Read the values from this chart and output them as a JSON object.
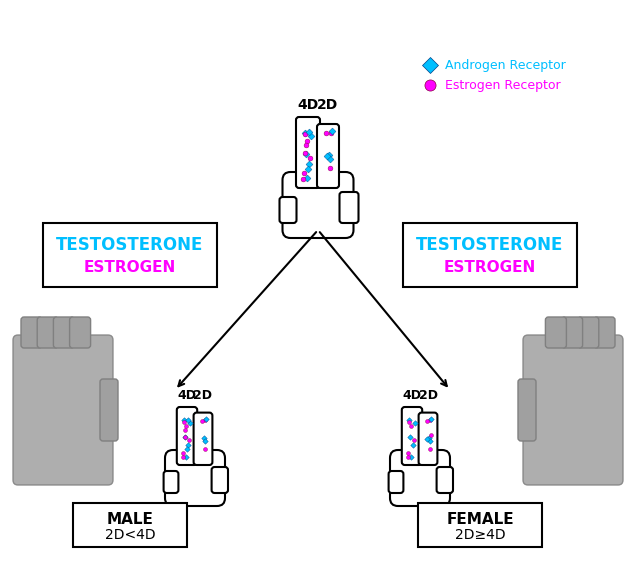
{
  "bg_color": "#ffffff",
  "androgen_color": "#00bfff",
  "estrogen_color": "#ff00ff",
  "testosterone_color": "#00bfff",
  "estrogen_label_color": "#ff00ff",
  "legend_androgen_text": "Androgen Receptor",
  "legend_estrogen_text": "Estrogen Receptor",
  "left_box_lines": [
    "TESTOSTERONE",
    "ESTROGEN"
  ],
  "right_box_lines": [
    "TESTOSTERONE",
    "ESTROGEN"
  ],
  "male_label": "MALE",
  "male_sublabel": "2D<4D",
  "female_label": "FEMALE",
  "female_sublabel": "2D≥4D",
  "finger_4d_label": "4D",
  "finger_2d_label": "2D"
}
